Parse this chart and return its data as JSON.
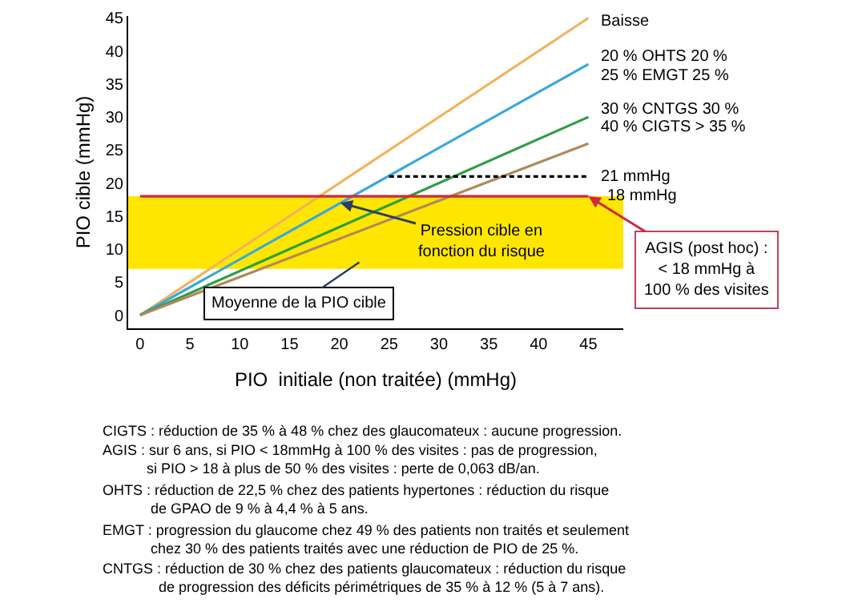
{
  "chart_data": {
    "type": "line",
    "xlabel": "PIO  initiale (non traitée) (mmHg)",
    "ylabel": "PIO cible (mmHg)",
    "xlim": [
      -1.2,
      48.5
    ],
    "ylim": [
      -2,
      45.3
    ],
    "xticks": [
      0,
      5,
      10,
      15,
      20,
      25,
      30,
      35,
      40,
      45
    ],
    "yticks": [
      0,
      5,
      10,
      15,
      20,
      25,
      30,
      35,
      40,
      45
    ],
    "grid": false,
    "marker": "none",
    "line_style": "solid",
    "series": [
      {
        "color": "#f2b35c",
        "x": [
          0,
          45
        ],
        "values": [
          0,
          45
        ]
      },
      {
        "color": "#3aa8dc",
        "x": [
          0,
          45
        ],
        "values": [
          0,
          38
        ]
      },
      {
        "color": "#2e9e45",
        "x": [
          0,
          45
        ],
        "values": [
          0,
          30
        ]
      },
      {
        "color": "#b08a5a",
        "x": [
          0,
          45
        ],
        "values": [
          0,
          26
        ]
      },
      {
        "color": "#d0283c",
        "x": [
          0,
          45
        ],
        "values": [
          18,
          18
        ]
      },
      {
        "color": "#000000",
        "x": [
          25,
          45
        ],
        "values": [
          21,
          21
        ],
        "line_style": "dashed"
      }
    ],
    "bands": [
      {
        "axis": "y",
        "from": 7,
        "to": 18,
        "color": "#ffe600"
      }
    ],
    "annotations": [
      {
        "text": "Baisse",
        "x": 45,
        "y": 44.5
      },
      {
        "text": "20 % OHTS 20 %",
        "x": 45,
        "y": 39
      },
      {
        "text": "30 % CNTGS 30 %",
        "x": 45,
        "y": 31
      },
      {
        "text": "21 mmHg",
        "x": 45,
        "y": 21
      },
      {
        "text": "18 mmHg",
        "x": 45,
        "y": 18
      },
      {
        "text": "Pression cible en\nfonction du risque",
        "x": 20.1,
        "y": 17
      },
      {
        "text": "Moyenne de la PIO cible",
        "x": 22,
        "y": 8
      },
      {
        "text": "AGIS (post hoc) :\n< 18 mmHg à\n100 % des visites",
        "x": 45,
        "y": 18
      },
      "25 % EMGT 25 %",
      "40 % CIGTS > 35 %",
      "CIGTS : réduction de 35 % à 48 % chez des glaucomateux : aucune progression.",
      "AGIS : sur 6 ans, si PIO < 18mmHg à 100 % des visites : pas de progression,\n           si PIO > 18 à plus de 50 % des visites : perte de 0,063 dB/an.",
      "OHTS : réduction de 22,5 % chez des patients hypertones : réduction du risque\n            de GPAO de 9 % à 4,4 % à 5 ans.",
      "EMGT : progression du glaucome chez 49 % des patients non traités et seulement\n            chez 30 % des patients traités avec une réduction de PIO de 25 %.",
      "CNTGS : réduction de 30 % chez des patients glaucomateux : réduction du risque\n              de progression des déficits périmétriques de 35 % à 12 % (5 à 7 ans)."
    ]
  }
}
